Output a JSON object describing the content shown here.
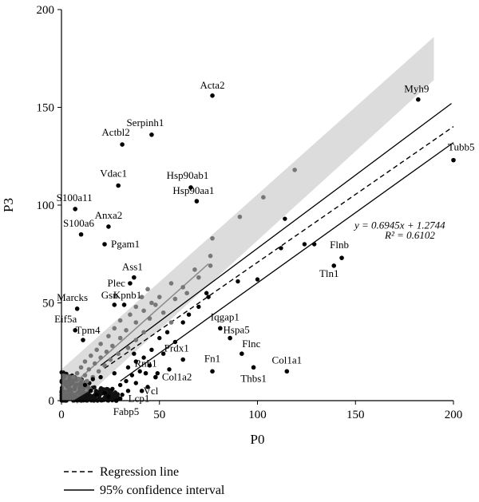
{
  "chart_data": {
    "type": "scatter",
    "xlabel": "P0",
    "ylabel": "P3",
    "xlim": [
      0,
      200
    ],
    "ylim": [
      0,
      200
    ],
    "x_ticks": [
      0,
      50,
      100,
      150,
      200
    ],
    "y_ticks": [
      0,
      50,
      100,
      150,
      200
    ],
    "regression": {
      "slope": 0.6945,
      "intercept": 1.2744,
      "r_squared": 0.6102,
      "equation_text": "y = 0.6945x + 1.2744",
      "r2_text": "R² = 0.6102"
    },
    "confidence_interval": {
      "upper": [
        [
          20,
          18
        ],
        [
          199,
          152
        ]
      ],
      "lower": [
        [
          30,
          10
        ],
        [
          200,
          132
        ]
      ]
    },
    "diagonal_band": {
      "color": "#dcdcdc",
      "center": [
        [
          0,
          5
        ],
        [
          190,
          175
        ]
      ],
      "half_width_y": 11
    },
    "labeled_points": [
      {
        "label": "Acta2",
        "x": 77,
        "y": 156
      },
      {
        "label": "Myh9",
        "x": 182,
        "y": 154
      },
      {
        "label": "Serpinh1",
        "x": 46,
        "y": 136
      },
      {
        "label": "Actbl2",
        "x": 31,
        "y": 131
      },
      {
        "label": "Tubb5",
        "x": 200,
        "y": 123
      },
      {
        "label": "Vdac1",
        "x": 29,
        "y": 110
      },
      {
        "label": "Hsp90ab1",
        "x": 66,
        "y": 109
      },
      {
        "label": "Hsp90aa1",
        "x": 69,
        "y": 102
      },
      {
        "label": "S100a11",
        "x": 7,
        "y": 98
      },
      {
        "label": "Anxa2",
        "x": 24,
        "y": 89
      },
      {
        "label": "S100a6",
        "x": 10,
        "y": 85
      },
      {
        "label": "Pgam1",
        "x": 22,
        "y": 80
      },
      {
        "label": "Flnb",
        "x": 143,
        "y": 73
      },
      {
        "label": "Tln1",
        "x": 139,
        "y": 69
      },
      {
        "label": "Ass1",
        "x": 37,
        "y": 63
      },
      {
        "label": "Plec",
        "x": 35,
        "y": 60
      },
      {
        "label": "Gsn",
        "x": 27,
        "y": 49
      },
      {
        "label": "Kpnb1",
        "x": 32,
        "y": 49
      },
      {
        "label": "Marcks",
        "x": 8,
        "y": 47
      },
      {
        "label": "Iqgap1",
        "x": 81,
        "y": 37
      },
      {
        "label": "Eif5a",
        "x": 7,
        "y": 36
      },
      {
        "label": "Tpm4",
        "x": 11,
        "y": 31
      },
      {
        "label": "Hspa5",
        "x": 86,
        "y": 32
      },
      {
        "label": "Flnc",
        "x": 92,
        "y": 24
      },
      {
        "label": "Prdx1",
        "x": 62,
        "y": 21
      },
      {
        "label": "Fn1",
        "x": 77,
        "y": 15
      },
      {
        "label": "Thbs1",
        "x": 98,
        "y": 17
      },
      {
        "label": "Col1a1",
        "x": 115,
        "y": 15
      },
      {
        "label": "Rnh1",
        "x": 43,
        "y": 14
      },
      {
        "label": "Col1a2",
        "x": 48,
        "y": 12
      },
      {
        "label": "Vcl",
        "x": 41,
        "y": 5
      },
      {
        "label": "Lcp1",
        "x": 30,
        "y": 1
      },
      {
        "label": "Fabp5",
        "x": 28,
        "y": 0
      }
    ],
    "points_black": [
      {
        "x": 114,
        "y": 93
      },
      {
        "x": 124,
        "y": 80
      },
      {
        "x": 129,
        "y": 80
      },
      {
        "x": 112,
        "y": 78
      },
      {
        "x": 100,
        "y": 62
      },
      {
        "x": 90,
        "y": 61
      },
      {
        "x": 74,
        "y": 55
      },
      {
        "x": 75,
        "y": 53
      },
      {
        "x": 62,
        "y": 40
      },
      {
        "x": 54,
        "y": 35
      },
      {
        "x": 50,
        "y": 32
      },
      {
        "x": 46,
        "y": 26
      },
      {
        "x": 42,
        "y": 22
      },
      {
        "x": 38,
        "y": 20
      },
      {
        "x": 34,
        "y": 17
      },
      {
        "x": 40,
        "y": 15
      },
      {
        "x": 36,
        "y": 13
      },
      {
        "x": 33,
        "y": 10
      },
      {
        "x": 30,
        "y": 8
      },
      {
        "x": 26,
        "y": 6
      },
      {
        "x": 22,
        "y": 4
      },
      {
        "x": 18,
        "y": 3
      },
      {
        "x": 24,
        "y": 2
      },
      {
        "x": 34,
        "y": 5
      },
      {
        "x": 38,
        "y": 9
      },
      {
        "x": 45,
        "y": 18
      },
      {
        "x": 52,
        "y": 24
      },
      {
        "x": 58,
        "y": 30
      },
      {
        "x": 65,
        "y": 44
      },
      {
        "x": 70,
        "y": 48
      },
      {
        "x": 20,
        "y": 12
      },
      {
        "x": 27,
        "y": 14
      },
      {
        "x": 31,
        "y": 3
      },
      {
        "x": 15,
        "y": 5
      },
      {
        "x": 12,
        "y": 8
      },
      {
        "x": 16,
        "y": 11
      },
      {
        "x": 44,
        "y": 7
      },
      {
        "x": 49,
        "y": 14
      },
      {
        "x": 55,
        "y": 16
      },
      {
        "x": 37,
        "y": 24
      }
    ],
    "points_gray": [
      {
        "x": 119,
        "y": 118
      },
      {
        "x": 103,
        "y": 104
      },
      {
        "x": 91,
        "y": 94
      },
      {
        "x": 77,
        "y": 83
      },
      {
        "x": 76,
        "y": 74
      },
      {
        "x": 76,
        "y": 69
      },
      {
        "x": 68,
        "y": 67
      },
      {
        "x": 56,
        "y": 60
      },
      {
        "x": 62,
        "y": 58
      },
      {
        "x": 44,
        "y": 57
      },
      {
        "x": 50,
        "y": 53
      },
      {
        "x": 41,
        "y": 53
      },
      {
        "x": 46,
        "y": 50
      },
      {
        "x": 38,
        "y": 48
      },
      {
        "x": 42,
        "y": 46
      },
      {
        "x": 52,
        "y": 45
      },
      {
        "x": 35,
        "y": 44
      },
      {
        "x": 45,
        "y": 42
      },
      {
        "x": 30,
        "y": 41
      },
      {
        "x": 38,
        "y": 40
      },
      {
        "x": 56,
        "y": 40
      },
      {
        "x": 27,
        "y": 37
      },
      {
        "x": 33,
        "y": 36
      },
      {
        "x": 42,
        "y": 35
      },
      {
        "x": 24,
        "y": 33
      },
      {
        "x": 30,
        "y": 32
      },
      {
        "x": 38,
        "y": 31
      },
      {
        "x": 20,
        "y": 29
      },
      {
        "x": 26,
        "y": 28
      },
      {
        "x": 34,
        "y": 27
      },
      {
        "x": 18,
        "y": 26
      },
      {
        "x": 23,
        "y": 25
      },
      {
        "x": 29,
        "y": 24
      },
      {
        "x": 15,
        "y": 23
      },
      {
        "x": 20,
        "y": 22
      },
      {
        "x": 25,
        "y": 21
      },
      {
        "x": 12,
        "y": 20
      },
      {
        "x": 17,
        "y": 19
      },
      {
        "x": 22,
        "y": 18
      },
      {
        "x": 10,
        "y": 17
      },
      {
        "x": 14,
        "y": 16
      },
      {
        "x": 19,
        "y": 15
      },
      {
        "x": 8,
        "y": 14
      },
      {
        "x": 12,
        "y": 13
      },
      {
        "x": 16,
        "y": 12
      },
      {
        "x": 6,
        "y": 12
      },
      {
        "x": 9,
        "y": 11
      },
      {
        "x": 13,
        "y": 10
      },
      {
        "x": 48,
        "y": 49
      },
      {
        "x": 58,
        "y": 52
      },
      {
        "x": 64,
        "y": 55
      },
      {
        "x": 70,
        "y": 63
      }
    ],
    "dense_cluster": {
      "x_range": [
        0,
        30
      ],
      "y_range": [
        0,
        15
      ],
      "description_marks": 260
    }
  },
  "legend": {
    "regression_label": "Regression line",
    "ci_label": "95% confidence interval"
  }
}
